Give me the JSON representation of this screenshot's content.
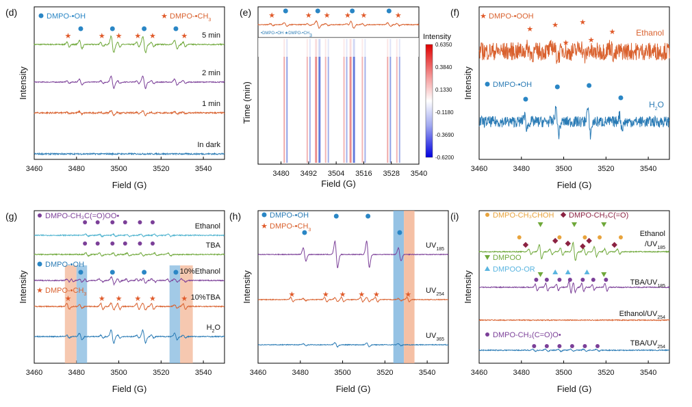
{
  "colors": {
    "green": "#6fa83a",
    "purple": "#7b3f98",
    "orange": "#d9612e",
    "blue": "#2a7bb5",
    "cyan": "#4fb3cf",
    "gray": "#8a8a8a",
    "dot": "#2a86c5",
    "star": "#e05a2a",
    "yellow": "#e8a33c",
    "maroon": "#8b2242",
    "tri": "#6fa83a",
    "lightblue": "#5ab5e0",
    "bandBlue": "#7bb3dd",
    "bandOrange": "#f2b08f"
  },
  "chart_data": [
    {
      "id": "d",
      "label": "(d)",
      "type": "line",
      "xlabel": "Field (G)",
      "ylabel": "Intensity",
      "xlim": [
        3460,
        3550
      ],
      "xticks": [
        3460,
        3480,
        3500,
        3520,
        3540
      ],
      "legend": [
        {
          "marker": "dot",
          "text": "DMPO-•OH"
        },
        {
          "marker": "star",
          "text": "DMPO-•CH",
          "sub": "3"
        }
      ],
      "series": [
        {
          "name": "5 min",
          "color": "green",
          "amp": 1.0,
          "ch3": 0.55,
          "noise": 0.04,
          "label": "5 min",
          "dots": [
            3482,
            3497,
            3512,
            3527
          ],
          "stars": [
            3476,
            3492,
            3500,
            3509,
            3516,
            3531
          ]
        },
        {
          "name": "2 min",
          "color": "purple",
          "amp": 0.75,
          "ch3": 0.35,
          "noise": 0.03,
          "label": "2 min"
        },
        {
          "name": "1 min",
          "color": "orange",
          "amp": 0.3,
          "ch3": 0.15,
          "noise": 0.05,
          "label": "1 min"
        },
        {
          "name": "In dark",
          "color": "blue",
          "amp": 0.0,
          "ch3": 0.0,
          "noise": 0.05,
          "label": "In dark"
        }
      ]
    },
    {
      "id": "e",
      "label": "(e)",
      "type": "heatmap",
      "xlabel": "Field (G)",
      "ylabel": "Time (min)",
      "xlim": [
        3470,
        3540
      ],
      "xticks": [
        3480,
        3492,
        3504,
        3516,
        3528,
        3540
      ],
      "colorbar": {
        "title": "Intensity",
        "ticks": [
          "0.6350",
          "0.3840",
          "0.1330",
          "-0.1180",
          "-0.3690",
          "-0.6200"
        ]
      },
      "legend_text": "DMPO-•OH  DMPO-•CH",
      "legend_sub": "3"
    },
    {
      "id": "f",
      "label": "(f)",
      "type": "line",
      "xlabel": "Field (G)",
      "ylabel": "Intensity",
      "xlim": [
        3460,
        3550
      ],
      "xticks": [
        3460,
        3480,
        3500,
        3520,
        3540
      ],
      "legend": [
        {
          "marker": "star",
          "text": "DMPO-•OOH"
        },
        {
          "marker": "dot",
          "text": "DMPO-•OH"
        }
      ],
      "series": [
        {
          "name": "Ethanol",
          "color": "orange",
          "label": "Ethanol"
        },
        {
          "name": "H2O",
          "color": "blue",
          "label": "H",
          "sub": "2",
          "label2": "O"
        }
      ]
    },
    {
      "id": "g",
      "label": "(g)",
      "type": "line",
      "xlabel": "Field (G)",
      "ylabel": "Intensity",
      "xlim": [
        3460,
        3550
      ],
      "xticks": [
        3460,
        3480,
        3500,
        3520,
        3540
      ],
      "legend": [
        {
          "marker": "purpledot",
          "text": "DMPO-CH₃C(=O)OO•"
        },
        {
          "marker": "dot",
          "text": "DMPO-•OH"
        },
        {
          "marker": "star",
          "text": "DMPO-•CH",
          "sub": "3"
        }
      ],
      "series": [
        {
          "name": "Ethanol",
          "label": "Ethanol"
        },
        {
          "name": "TBA",
          "label": "TBA"
        },
        {
          "name": "10%Ethanol",
          "label": "10%Ethanol"
        },
        {
          "name": "10%TBA",
          "label": "10%TBA"
        },
        {
          "name": "H2O",
          "label": "H",
          "sub": "2",
          "label2": "O"
        }
      ]
    },
    {
      "id": "h",
      "label": "(h)",
      "type": "line",
      "xlabel": "Field (G)",
      "ylabel": "Intensity",
      "xlim": [
        3460,
        3550
      ],
      "xticks": [
        3460,
        3480,
        3500,
        3520,
        3540
      ],
      "legend": [
        {
          "marker": "dot",
          "text": "DMPO-•OH"
        },
        {
          "marker": "star",
          "text": "DMPO-•CH",
          "sub": "3"
        }
      ],
      "series": [
        {
          "name": "UV185",
          "label": "UV",
          "sub": "185"
        },
        {
          "name": "UV254",
          "label": "UV",
          "sub": "254"
        },
        {
          "name": "UV365",
          "label": "UV",
          "sub": "365"
        }
      ]
    },
    {
      "id": "i",
      "label": "(i)",
      "type": "line",
      "xlabel": "Field (G)",
      "ylabel": "Intensity",
      "xlim": [
        3460,
        3550
      ],
      "xticks": [
        3460,
        3480,
        3500,
        3520,
        3540
      ],
      "legend": [
        {
          "marker": "yellowdot",
          "text": "DMPO-CH₃CHOH"
        },
        {
          "marker": "diamond",
          "text": "DMPO-CH₃C(=O)"
        },
        {
          "marker": "triangle",
          "text": "DMPOO"
        },
        {
          "marker": "ltriangle",
          "text": "DMPOO-OR"
        },
        {
          "marker": "purpledot",
          "text": "DMPO-CH₃(C=O)O•"
        }
      ],
      "series": [
        {
          "name": "Ethanol/UV185",
          "label": "Ethanol",
          "label2": "/UV",
          "sub": "185"
        },
        {
          "name": "TBA/UV185",
          "label": "TBA/UV",
          "sub": "185"
        },
        {
          "name": "Ethanol/UV254",
          "label": "Ethanol/UV",
          "sub": "254"
        },
        {
          "name": "TBA/UV254",
          "label": "TBA/UV",
          "sub": "254"
        }
      ]
    }
  ]
}
